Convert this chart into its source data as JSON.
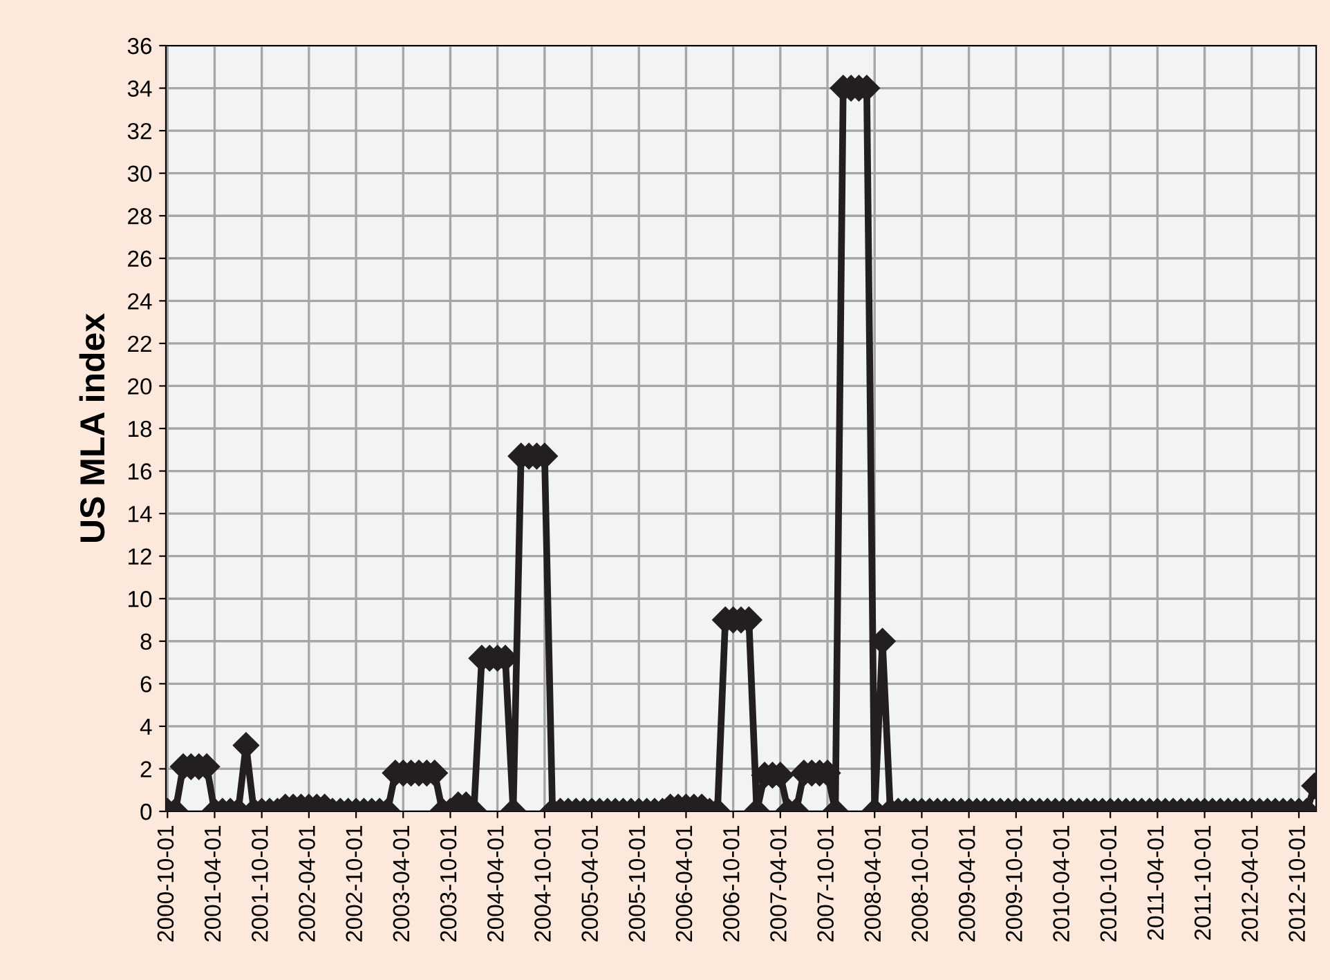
{
  "chart_data": {
    "type": "line",
    "ylabel": "US MLA index",
    "categories": [
      "2000-10-01",
      null,
      null,
      null,
      null,
      null,
      "2001-04-01",
      null,
      null,
      null,
      null,
      null,
      "2001-10-01",
      null,
      null,
      null,
      null,
      null,
      "2002-04-01",
      null,
      null,
      null,
      null,
      null,
      "2002-10-01",
      null,
      null,
      null,
      null,
      null,
      "2003-04-01",
      null,
      null,
      null,
      null,
      null,
      "2003-10-01",
      null,
      null,
      null,
      null,
      null,
      "2004-04-01",
      null,
      null,
      null,
      null,
      null,
      "2004-10-01",
      null,
      null,
      null,
      null,
      null,
      "2005-04-01",
      null,
      null,
      null,
      null,
      null,
      "2005-10-01",
      null,
      null,
      null,
      null,
      null,
      "2006-04-01",
      null,
      null,
      null,
      null,
      null,
      "2006-10-01",
      null,
      null,
      null,
      null,
      null,
      "2007-04-01",
      null,
      null,
      null,
      null,
      null,
      "2007-10-01",
      null,
      null,
      null,
      null,
      null,
      "2008-04-01",
      null,
      null,
      null,
      null,
      null,
      "2008-10-01",
      null,
      null,
      null,
      null,
      null,
      "2009-04-01",
      null,
      null,
      null,
      null,
      null,
      "2009-10-01",
      null,
      null,
      null,
      null,
      null,
      "2010-04-01",
      null,
      null,
      null,
      null,
      null,
      "2010-10-01",
      null,
      null,
      null,
      null,
      null,
      "2011-04-01",
      null,
      null,
      null,
      null,
      null,
      "2011-10-01",
      null,
      null,
      null,
      null,
      null,
      "2012-04-01",
      null,
      null,
      null,
      null,
      null,
      "2012-10-01",
      null,
      null
    ],
    "series": [
      {
        "color": "#231f20",
        "values": [
          0,
          0,
          2.1,
          2.1,
          2.1,
          2.1,
          0,
          0,
          0,
          0,
          3.1,
          0,
          0,
          0,
          0,
          0.2,
          0.2,
          0.2,
          0.2,
          0.2,
          0.2,
          0,
          0,
          0,
          0,
          0,
          0,
          0,
          0,
          1.8,
          1.8,
          1.8,
          1.8,
          1.8,
          1.8,
          0,
          0,
          0.3,
          0.3,
          0,
          7.2,
          7.2,
          7.2,
          7.2,
          0,
          16.7,
          16.7,
          16.7,
          16.7,
          0,
          0,
          0,
          0,
          0,
          0,
          0,
          0,
          0,
          0,
          0,
          0,
          0,
          0,
          0,
          0.2,
          0.2,
          0.2,
          0.2,
          0.2,
          0,
          0,
          9,
          9,
          9,
          9,
          0,
          1.7,
          1.7,
          1.7,
          0,
          0,
          1.8,
          1.8,
          1.8,
          1.8,
          0,
          34,
          34,
          34,
          34,
          0,
          8,
          0,
          0,
          0,
          0,
          0,
          0,
          0,
          0,
          0,
          0,
          0,
          0,
          0,
          0,
          0,
          0,
          0,
          0,
          0,
          0,
          0,
          0,
          0,
          0,
          0,
          0,
          0,
          0,
          0,
          0,
          0,
          0,
          0,
          0,
          0,
          0,
          0,
          0,
          0,
          0,
          0,
          0,
          0,
          0,
          0,
          0,
          0,
          0,
          0,
          0,
          0,
          0,
          0,
          0,
          1.2
        ]
      }
    ],
    "ylim": [
      0,
      36
    ],
    "yticks": [
      0,
      2,
      4,
      6,
      8,
      10,
      12,
      14,
      16,
      18,
      20,
      22,
      24,
      26,
      28,
      30,
      32,
      34,
      36
    ],
    "grid": true,
    "marker": "diamond",
    "line_style": "solid",
    "legend": false
  }
}
